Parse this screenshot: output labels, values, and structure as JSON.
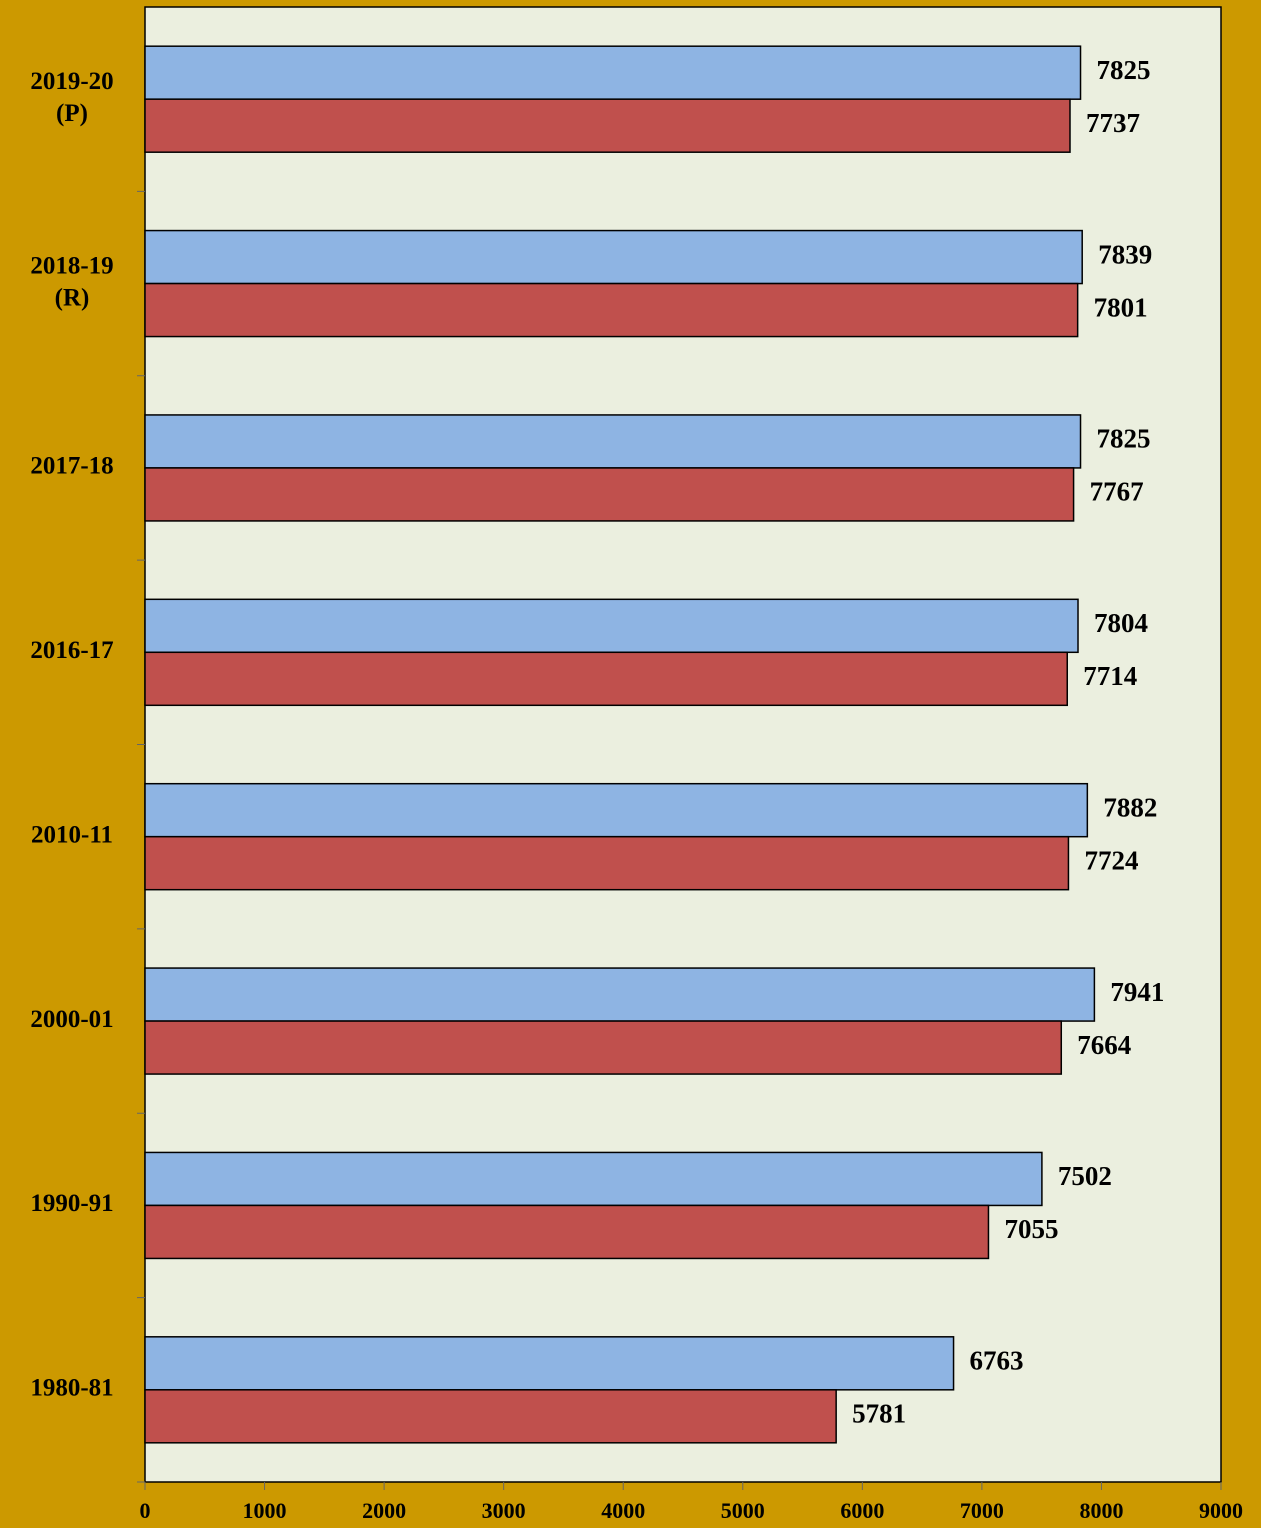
{
  "chart_data": {
    "type": "hbar",
    "categories": [
      [
        "2019-20",
        "(P)"
      ],
      [
        "2018-19",
        "(R)"
      ],
      [
        "2017-18"
      ],
      [
        "2016-17"
      ],
      [
        "2010-11"
      ],
      [
        "2000-01"
      ],
      [
        "1990-91"
      ],
      [
        "1980-81"
      ]
    ],
    "series": [
      {
        "color": "#8eb4e3",
        "values": [
          7825,
          7839,
          7825,
          7804,
          7882,
          7941,
          7502,
          6763
        ]
      },
      {
        "color": "#c0504d",
        "values": [
          7737,
          7801,
          7767,
          7714,
          7724,
          7664,
          7055,
          5781
        ]
      }
    ],
    "xlim": [
      0,
      9000
    ],
    "xticks": [
      0,
      1000,
      2000,
      3000,
      4000,
      5000,
      6000,
      7000,
      8000,
      9000
    ],
    "plot_background": "#ebefdf"
  }
}
